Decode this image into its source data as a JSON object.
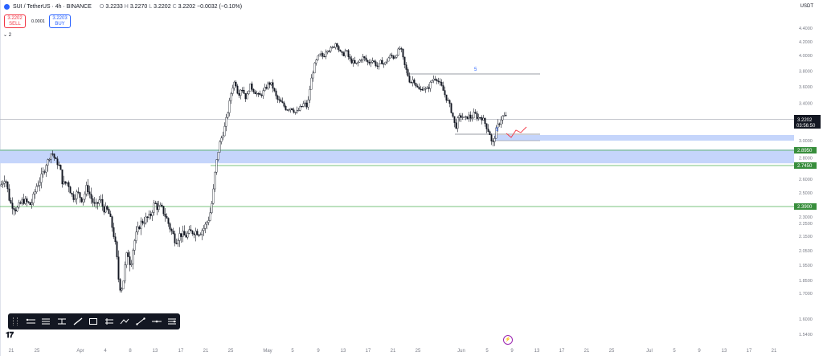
{
  "header": {
    "symbol": "SUI / TetherUS · 4h · BINANCE",
    "o_label": "O",
    "open": "3.2233",
    "h_label": "H",
    "high": "3.2270",
    "l_label": "L",
    "low": "3.2202",
    "c_label": "C",
    "close": "3.2202",
    "change": "−0.0032 (−0.10%)"
  },
  "trade": {
    "sell_price": "3.2202",
    "sell_label": "SELL",
    "spread": "0.0001",
    "buy_price": "3.2203",
    "buy_label": "BUY"
  },
  "indicator_count": "2",
  "currency": "USDT",
  "price_labels": {
    "last_price": "3.2202",
    "countdown": "03:56:50",
    "level_upper": "2.8950",
    "level_lower": "2.7450",
    "level_support": "2.3900"
  },
  "annotations": {
    "top_label": "5",
    "mid_label": "5"
  },
  "colors": {
    "candle": "#131722",
    "zone": "#c5d5fb",
    "level_line": "#4caf50",
    "level_label_bg": "#388e3c",
    "last_price_bg": "#131722",
    "projection": "#f23645",
    "annotation": "#2962ff",
    "grid_line": "#b2b5be"
  },
  "toolbar_icons": [
    "horizontal-ray-icon",
    "parallel-channel-icon",
    "fib-retracement-icon",
    "pen-icon",
    "rectangle-icon",
    "position-icon",
    "path-icon",
    "trend-line-icon",
    "horizontal-line-icon",
    "anchored-vwap-icon"
  ],
  "chart_data": {
    "type": "candlestick",
    "x_tick_labels": [
      "21",
      "25",
      "Apr",
      "4",
      "8",
      "13",
      "17",
      "21",
      "25",
      "May",
      "5",
      "9",
      "13",
      "17",
      "21",
      "25",
      "Jun",
      "5",
      "9",
      "13",
      "17",
      "21",
      "25",
      "Jul",
      "5",
      "9",
      "13",
      "17",
      "21"
    ],
    "y_tick_labels": [
      "4.4000",
      "4.2000",
      "4.0000",
      "3.8000",
      "3.6000",
      "3.4000",
      "3.2000",
      "3.0000",
      "2.9000",
      "2.8000",
      "2.7000",
      "2.6000",
      "2.5000",
      "2.4000",
      "2.3000",
      "2.2500",
      "2.1500",
      "2.0500",
      "1.9500",
      "1.8500",
      "1.7000",
      "1.6000",
      "1.5400"
    ],
    "y_ticks": [
      4.4,
      4.2,
      4.0,
      3.8,
      3.6,
      3.4,
      3.2,
      3.0,
      2.9,
      2.8,
      2.7,
      2.6,
      2.5,
      2.4,
      2.3,
      2.25,
      2.15,
      2.05,
      1.95,
      1.85,
      1.7,
      1.6,
      1.54
    ],
    "price_path": [
      [
        0,
        2.55
      ],
      [
        6,
        2.62
      ],
      [
        12,
        2.42
      ],
      [
        20,
        2.36
      ],
      [
        28,
        2.44
      ],
      [
        38,
        2.4
      ],
      [
        45,
        2.55
      ],
      [
        52,
        2.62
      ],
      [
        58,
        2.74
      ],
      [
        64,
        2.88
      ],
      [
        68,
        2.78
      ],
      [
        74,
        2.68
      ],
      [
        78,
        2.56
      ],
      [
        84,
        2.58
      ],
      [
        90,
        2.46
      ],
      [
        96,
        2.5
      ],
      [
        102,
        2.44
      ],
      [
        108,
        2.55
      ],
      [
        112,
        2.47
      ],
      [
        118,
        2.38
      ],
      [
        124,
        2.45
      ],
      [
        128,
        2.37
      ],
      [
        134,
        2.35
      ],
      [
        140,
        2.2
      ],
      [
        144,
        2.05
      ],
      [
        148,
        1.8
      ],
      [
        150,
        1.72
      ],
      [
        154,
        1.9
      ],
      [
        158,
        2.05
      ],
      [
        162,
        1.95
      ],
      [
        166,
        2.1
      ],
      [
        170,
        2.18
      ],
      [
        174,
        2.25
      ],
      [
        180,
        2.28
      ],
      [
        186,
        2.3
      ],
      [
        192,
        2.42
      ],
      [
        196,
        2.37
      ],
      [
        200,
        2.38
      ],
      [
        206,
        2.3
      ],
      [
        212,
        2.2
      ],
      [
        218,
        2.12
      ],
      [
        224,
        2.17
      ],
      [
        230,
        2.15
      ],
      [
        236,
        2.18
      ],
      [
        242,
        2.19
      ],
      [
        248,
        2.18
      ],
      [
        254,
        2.22
      ],
      [
        260,
        2.3
      ],
      [
        264,
        2.45
      ],
      [
        268,
        2.7
      ],
      [
        272,
        2.95
      ],
      [
        276,
        3.05
      ],
      [
        280,
        3.15
      ],
      [
        284,
        3.35
      ],
      [
        288,
        3.58
      ],
      [
        292,
        3.68
      ],
      [
        296,
        3.5
      ],
      [
        300,
        3.6
      ],
      [
        306,
        3.45
      ],
      [
        310,
        3.62
      ],
      [
        316,
        3.55
      ],
      [
        322,
        3.48
      ],
      [
        328,
        3.55
      ],
      [
        334,
        3.65
      ],
      [
        338,
        3.62
      ],
      [
        344,
        3.45
      ],
      [
        350,
        3.4
      ],
      [
        356,
        3.33
      ],
      [
        362,
        3.35
      ],
      [
        368,
        3.28
      ],
      [
        374,
        3.35
      ],
      [
        378,
        3.4
      ],
      [
        382,
        3.35
      ],
      [
        386,
        3.65
      ],
      [
        390,
        3.85
      ],
      [
        394,
        3.95
      ],
      [
        398,
        4.02
      ],
      [
        402,
        3.98
      ],
      [
        406,
        4.1
      ],
      [
        410,
        4.08
      ],
      [
        414,
        4.12
      ],
      [
        418,
        4.2
      ],
      [
        422,
        4.05
      ],
      [
        426,
        4.0
      ],
      [
        430,
        4.08
      ],
      [
        434,
        3.95
      ],
      [
        438,
        3.92
      ],
      [
        442,
        3.88
      ],
      [
        446,
        3.92
      ],
      [
        450,
        3.98
      ],
      [
        454,
        3.95
      ],
      [
        458,
        3.9
      ],
      [
        462,
        3.95
      ],
      [
        466,
        3.9
      ],
      [
        470,
        3.85
      ],
      [
        474,
        3.93
      ],
      [
        478,
        3.88
      ],
      [
        482,
        3.96
      ],
      [
        486,
        4.0
      ],
      [
        490,
        3.97
      ],
      [
        494,
        4.05
      ],
      [
        498,
        4.12
      ],
      [
        502,
        3.9
      ],
      [
        506,
        3.78
      ],
      [
        510,
        3.65
      ],
      [
        514,
        3.7
      ],
      [
        518,
        3.6
      ],
      [
        522,
        3.55
      ],
      [
        526,
        3.6
      ],
      [
        530,
        3.55
      ],
      [
        534,
        3.62
      ],
      [
        538,
        3.7
      ],
      [
        542,
        3.72
      ],
      [
        546,
        3.65
      ],
      [
        550,
        3.58
      ],
      [
        554,
        3.48
      ],
      [
        558,
        3.4
      ],
      [
        562,
        3.28
      ],
      [
        566,
        3.12
      ],
      [
        570,
        3.22
      ],
      [
        574,
        3.25
      ],
      [
        578,
        3.2
      ],
      [
        582,
        3.25
      ],
      [
        586,
        3.22
      ],
      [
        590,
        3.28
      ],
      [
        594,
        3.22
      ],
      [
        598,
        3.24
      ],
      [
        602,
        3.18
      ],
      [
        606,
        3.12
      ],
      [
        610,
        3.05
      ],
      [
        612,
        2.92
      ],
      [
        614,
        3.02
      ],
      [
        618,
        3.12
      ],
      [
        622,
        3.2
      ],
      [
        626,
        3.25
      ],
      [
        630,
        3.23
      ]
    ]
  }
}
